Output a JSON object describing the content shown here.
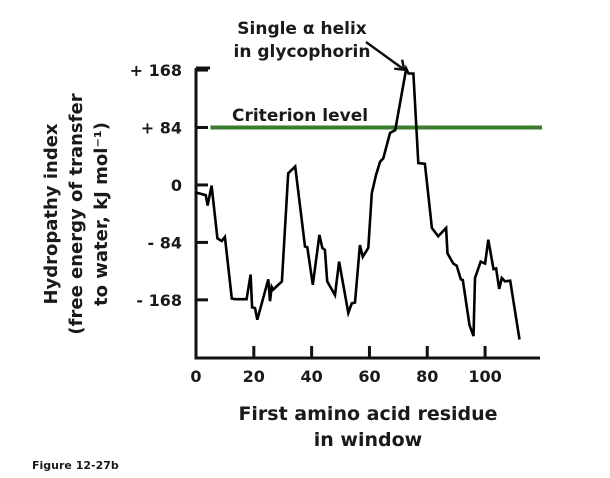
{
  "chart_data": {
    "type": "line",
    "title": "",
    "xlabel_lines": [
      "First amino acid residue",
      "in window"
    ],
    "ylabel_lines": [
      "Hydropathy index",
      "(free energy of transfer",
      "to water, kJ mol⁻¹)"
    ],
    "xlim": [
      0,
      119
    ],
    "ylim": [
      -253,
      171
    ],
    "x_ticks": [
      0,
      20,
      40,
      60,
      80,
      100
    ],
    "x_tick_labels": [
      "0",
      "20",
      "40",
      "60",
      "80",
      "100"
    ],
    "y_ticks": [
      168,
      84,
      0,
      -84,
      -168
    ],
    "y_tick_labels": [
      "+ 168",
      "+ 84",
      "0",
      "- 84",
      "- 168"
    ],
    "grid": false,
    "criterion": {
      "label": "Criterion level",
      "value": 84,
      "x_start": 5,
      "color": "#3a7d2c"
    },
    "annotation": {
      "lines": [
        "Single α helix",
        "in glycophorin"
      ],
      "points_to": [
        72.7,
        170
      ]
    },
    "line_color": "#000000",
    "series": [
      {
        "x": [
          0,
          3.4,
          4.0,
          5.4,
          7.4,
          8.9,
          10.0,
          12.4,
          13.5,
          17.5,
          18.9,
          19.4,
          20.4,
          21.2,
          25.0,
          25.6,
          26.2,
          26.7,
          29.7,
          31.9,
          34.3,
          37.7,
          38.5,
          40.4,
          42.7,
          43.7,
          44.6,
          45.4,
          48.1,
          49.5,
          52.7,
          53.9,
          55.0,
          56.7,
          57.7,
          59.6,
          60.8,
          62.3,
          63.7,
          64.8,
          67.1,
          68.9,
          72.7,
          73.5,
          75.2,
          76.9,
          79.2,
          81.6,
          83.8,
          86.5,
          87.0,
          89.0,
          90.2,
          91.6,
          92.3,
          94.6,
          96.0,
          96.5,
          98.5,
          100.0,
          101.1,
          102.9,
          103.8,
          104.9,
          105.8,
          106.9,
          108.7,
          111.9
        ],
        "y": [
          -11,
          -15,
          -30,
          -1,
          -78,
          -82,
          -76,
          -166,
          -167,
          -167,
          -131,
          -179,
          -180,
          -197,
          -138,
          -170,
          -149,
          -153,
          -141,
          17,
          27,
          -90,
          -91,
          -146,
          -73,
          -92,
          -95,
          -141,
          -161,
          -112,
          -187,
          -173,
          -172,
          -88,
          -105,
          -92,
          -12,
          15,
          34,
          39,
          76,
          80,
          170,
          163,
          163,
          32,
          31,
          -63,
          -75,
          -63,
          -100,
          -115,
          -118,
          -138,
          -139,
          -205,
          -221,
          -136,
          -112,
          -115,
          -80,
          -123,
          -122,
          -152,
          -136,
          -141,
          -140,
          -226
        ]
      }
    ]
  },
  "footer": "Figure 12-27b"
}
